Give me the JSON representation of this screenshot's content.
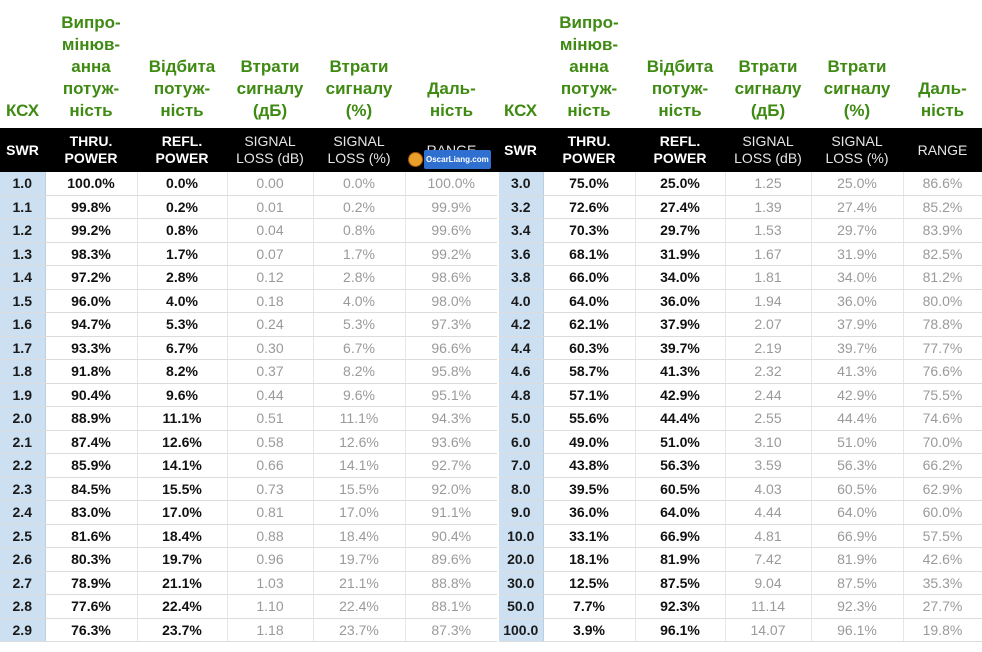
{
  "ua_headers": [
    "КСХ",
    "Випро-\nмінюв-\nанна\nпотуж-\nність",
    "Відбита\nпотуж-\nність",
    "Втрати\nсигналу\n(дБ)",
    "Втрати\nсигналу\n(%)",
    "Даль-\nність"
  ],
  "en_headers": [
    "SWR",
    "THRU.\nPOWER",
    "REFL.\nPOWER",
    "SIGNAL\nLOSS (dB)",
    "SIGNAL\nLOSS (%)",
    "RANGE"
  ],
  "logo_text": "OscarLiang.com",
  "colors": {
    "ua_header": "#3e8a12",
    "swr_cell": "#cde0f2",
    "header_bg": "#000000"
  },
  "left_rows": [
    [
      "1.0",
      "100.0%",
      "0.0%",
      "0.00",
      "0.0%",
      "100.0%"
    ],
    [
      "1.1",
      "99.8%",
      "0.2%",
      "0.01",
      "0.2%",
      "99.9%"
    ],
    [
      "1.2",
      "99.2%",
      "0.8%",
      "0.04",
      "0.8%",
      "99.6%"
    ],
    [
      "1.3",
      "98.3%",
      "1.7%",
      "0.07",
      "1.7%",
      "99.2%"
    ],
    [
      "1.4",
      "97.2%",
      "2.8%",
      "0.12",
      "2.8%",
      "98.6%"
    ],
    [
      "1.5",
      "96.0%",
      "4.0%",
      "0.18",
      "4.0%",
      "98.0%"
    ],
    [
      "1.6",
      "94.7%",
      "5.3%",
      "0.24",
      "5.3%",
      "97.3%"
    ],
    [
      "1.7",
      "93.3%",
      "6.7%",
      "0.30",
      "6.7%",
      "96.6%"
    ],
    [
      "1.8",
      "91.8%",
      "8.2%",
      "0.37",
      "8.2%",
      "95.8%"
    ],
    [
      "1.9",
      "90.4%",
      "9.6%",
      "0.44",
      "9.6%",
      "95.1%"
    ],
    [
      "2.0",
      "88.9%",
      "11.1%",
      "0.51",
      "11.1%",
      "94.3%"
    ],
    [
      "2.1",
      "87.4%",
      "12.6%",
      "0.58",
      "12.6%",
      "93.6%"
    ],
    [
      "2.2",
      "85.9%",
      "14.1%",
      "0.66",
      "14.1%",
      "92.7%"
    ],
    [
      "2.3",
      "84.5%",
      "15.5%",
      "0.73",
      "15.5%",
      "92.0%"
    ],
    [
      "2.4",
      "83.0%",
      "17.0%",
      "0.81",
      "17.0%",
      "91.1%"
    ],
    [
      "2.5",
      "81.6%",
      "18.4%",
      "0.88",
      "18.4%",
      "90.4%"
    ],
    [
      "2.6",
      "80.3%",
      "19.7%",
      "0.96",
      "19.7%",
      "89.6%"
    ],
    [
      "2.7",
      "78.9%",
      "21.1%",
      "1.03",
      "21.1%",
      "88.8%"
    ],
    [
      "2.8",
      "77.6%",
      "22.4%",
      "1.10",
      "22.4%",
      "88.1%"
    ],
    [
      "2.9",
      "76.3%",
      "23.7%",
      "1.18",
      "23.7%",
      "87.3%"
    ]
  ],
  "right_rows": [
    [
      "3.0",
      "75.0%",
      "25.0%",
      "1.25",
      "25.0%",
      "86.6%"
    ],
    [
      "3.2",
      "72.6%",
      "27.4%",
      "1.39",
      "27.4%",
      "85.2%"
    ],
    [
      "3.4",
      "70.3%",
      "29.7%",
      "1.53",
      "29.7%",
      "83.9%"
    ],
    [
      "3.6",
      "68.1%",
      "31.9%",
      "1.67",
      "31.9%",
      "82.5%"
    ],
    [
      "3.8",
      "66.0%",
      "34.0%",
      "1.81",
      "34.0%",
      "81.2%"
    ],
    [
      "4.0",
      "64.0%",
      "36.0%",
      "1.94",
      "36.0%",
      "80.0%"
    ],
    [
      "4.2",
      "62.1%",
      "37.9%",
      "2.07",
      "37.9%",
      "78.8%"
    ],
    [
      "4.4",
      "60.3%",
      "39.7%",
      "2.19",
      "39.7%",
      "77.7%"
    ],
    [
      "4.6",
      "58.7%",
      "41.3%",
      "2.32",
      "41.3%",
      "76.6%"
    ],
    [
      "4.8",
      "57.1%",
      "42.9%",
      "2.44",
      "42.9%",
      "75.5%"
    ],
    [
      "5.0",
      "55.6%",
      "44.4%",
      "2.55",
      "44.4%",
      "74.6%"
    ],
    [
      "6.0",
      "49.0%",
      "51.0%",
      "3.10",
      "51.0%",
      "70.0%"
    ],
    [
      "7.0",
      "43.8%",
      "56.3%",
      "3.59",
      "56.3%",
      "66.2%"
    ],
    [
      "8.0",
      "39.5%",
      "60.5%",
      "4.03",
      "60.5%",
      "62.9%"
    ],
    [
      "9.0",
      "36.0%",
      "64.0%",
      "4.44",
      "64.0%",
      "60.0%"
    ],
    [
      "10.0",
      "33.1%",
      "66.9%",
      "4.81",
      "66.9%",
      "57.5%"
    ],
    [
      "20.0",
      "18.1%",
      "81.9%",
      "7.42",
      "81.9%",
      "42.6%"
    ],
    [
      "30.0",
      "12.5%",
      "87.5%",
      "9.04",
      "87.5%",
      "35.3%"
    ],
    [
      "50.0",
      "7.7%",
      "92.3%",
      "11.14",
      "92.3%",
      "27.7%"
    ],
    [
      "100.0",
      "3.9%",
      "96.1%",
      "14.07",
      "96.1%",
      "19.8%"
    ]
  ]
}
